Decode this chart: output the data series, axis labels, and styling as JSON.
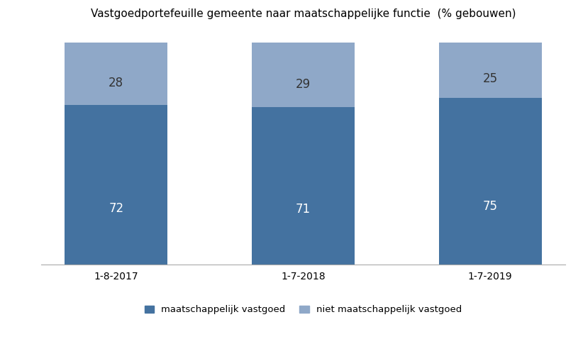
{
  "title": "Vastgoedportefeuille gemeente naar maatschappelijke functie  (% gebouwen)",
  "categories": [
    "1-8-2017",
    "1-7-2018",
    "1-7-2019"
  ],
  "maatschappelijk": [
    72,
    71,
    75
  ],
  "niet_maatschappelijk": [
    28,
    29,
    25
  ],
  "color_maatschappelijk": "#4472a0",
  "color_niet_maatschappelijk": "#8fa8c8",
  "legend_label_1": "maatschappelijk vastgoed",
  "legend_label_2": "niet maatschappelijk vastgoed",
  "bar_width": 0.55,
  "ylim": [
    0,
    107
  ],
  "label_fontsize": 12,
  "title_fontsize": 11,
  "tick_fontsize": 10,
  "legend_fontsize": 9.5,
  "background_color": "#ffffff",
  "label_color_bottom": "#ffffff",
  "label_color_top": "#333333"
}
